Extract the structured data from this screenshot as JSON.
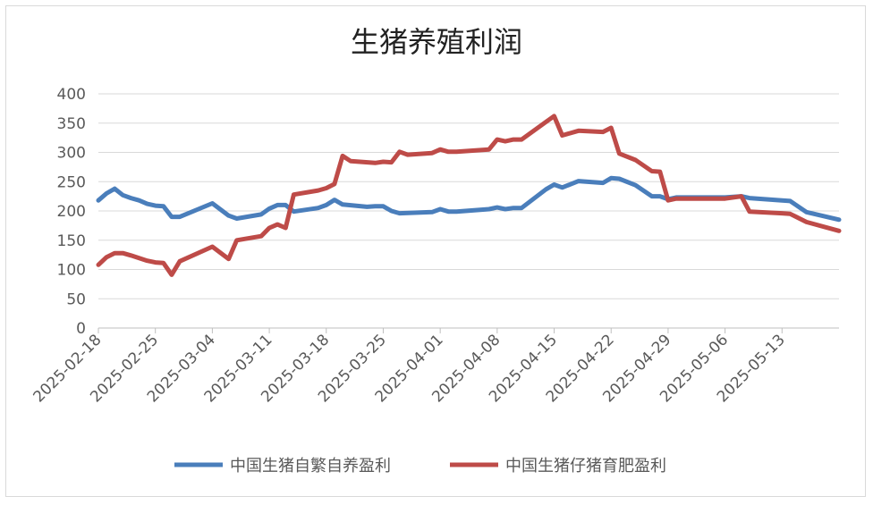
{
  "chart_data": {
    "type": "line",
    "title": "生猪养殖利润",
    "xlabel": "",
    "ylabel": "",
    "ylim": [
      0,
      400
    ],
    "yticks": [
      "0",
      "50",
      "100",
      "150",
      "200",
      "250",
      "300",
      "350",
      "400"
    ],
    "xticks": [
      "2025-02-18",
      "2025-02-25",
      "2025-03-04",
      "2025-03-11",
      "2025-03-18",
      "2025-03-25",
      "2025-04-01",
      "2025-04-08",
      "2025-04-15",
      "2025-04-22",
      "2025-04-29",
      "2025-05-06",
      "2025-05-13"
    ],
    "x_start": "2025-02-18",
    "x_end": "2025-05-20",
    "grid": true,
    "legend_position": "bottom",
    "series": [
      {
        "name": "中国生猪自繁自养盈利",
        "color": "#4a7ebb",
        "points": [
          [
            "2025-02-18",
            218
          ],
          [
            "2025-02-19",
            230
          ],
          [
            "2025-02-20",
            238
          ],
          [
            "2025-02-21",
            227
          ],
          [
            "2025-02-22",
            222
          ],
          [
            "2025-02-23",
            218
          ],
          [
            "2025-02-24",
            212
          ],
          [
            "2025-02-25",
            209
          ],
          [
            "2025-02-26",
            208
          ],
          [
            "2025-02-27",
            190
          ],
          [
            "2025-02-28",
            190
          ],
          [
            "2025-03-04",
            213
          ],
          [
            "2025-03-06",
            192
          ],
          [
            "2025-03-07",
            187
          ],
          [
            "2025-03-10",
            194
          ],
          [
            "2025-03-11",
            204
          ],
          [
            "2025-03-12",
            210
          ],
          [
            "2025-03-13",
            210
          ],
          [
            "2025-03-14",
            199
          ],
          [
            "2025-03-17",
            205
          ],
          [
            "2025-03-18",
            210
          ],
          [
            "2025-03-19",
            219
          ],
          [
            "2025-03-20",
            211
          ],
          [
            "2025-03-23",
            207
          ],
          [
            "2025-03-24",
            208
          ],
          [
            "2025-03-25",
            208
          ],
          [
            "2025-03-26",
            200
          ],
          [
            "2025-03-27",
            196
          ],
          [
            "2025-03-31",
            198
          ],
          [
            "2025-04-01",
            203
          ],
          [
            "2025-04-02",
            199
          ],
          [
            "2025-04-03",
            199
          ],
          [
            "2025-04-07",
            203
          ],
          [
            "2025-04-08",
            206
          ],
          [
            "2025-04-09",
            203
          ],
          [
            "2025-04-10",
            205
          ],
          [
            "2025-04-11",
            205
          ],
          [
            "2025-04-14",
            237
          ],
          [
            "2025-04-15",
            245
          ],
          [
            "2025-04-16",
            240
          ],
          [
            "2025-04-18",
            251
          ],
          [
            "2025-04-21",
            248
          ],
          [
            "2025-04-22",
            256
          ],
          [
            "2025-04-23",
            255
          ],
          [
            "2025-04-25",
            244
          ],
          [
            "2025-04-27",
            225
          ],
          [
            "2025-04-28",
            225
          ],
          [
            "2025-04-29",
            220
          ],
          [
            "2025-04-30",
            223
          ],
          [
            "2025-05-06",
            223
          ],
          [
            "2025-05-08",
            225
          ],
          [
            "2025-05-09",
            222
          ],
          [
            "2025-05-13",
            218
          ],
          [
            "2025-05-14",
            217
          ],
          [
            "2025-05-16",
            198
          ],
          [
            "2025-05-20",
            185
          ]
        ]
      },
      {
        "name": "中国生猪仔猪育肥盈利",
        "color": "#be4b48",
        "points": [
          [
            "2025-02-18",
            108
          ],
          [
            "2025-02-19",
            121
          ],
          [
            "2025-02-20",
            128
          ],
          [
            "2025-02-21",
            128
          ],
          [
            "2025-02-22",
            124
          ],
          [
            "2025-02-24",
            115
          ],
          [
            "2025-02-25",
            112
          ],
          [
            "2025-02-26",
            111
          ],
          [
            "2025-02-27",
            91
          ],
          [
            "2025-02-28",
            114
          ],
          [
            "2025-03-04",
            139
          ],
          [
            "2025-03-06",
            118
          ],
          [
            "2025-03-07",
            150
          ],
          [
            "2025-03-10",
            157
          ],
          [
            "2025-03-11",
            171
          ],
          [
            "2025-03-12",
            177
          ],
          [
            "2025-03-13",
            171
          ],
          [
            "2025-03-14",
            228
          ],
          [
            "2025-03-17",
            235
          ],
          [
            "2025-03-18",
            239
          ],
          [
            "2025-03-19",
            246
          ],
          [
            "2025-03-20",
            294
          ],
          [
            "2025-03-21",
            285
          ],
          [
            "2025-03-24",
            282
          ],
          [
            "2025-03-25",
            284
          ],
          [
            "2025-03-26",
            283
          ],
          [
            "2025-03-27",
            301
          ],
          [
            "2025-03-28",
            296
          ],
          [
            "2025-03-31",
            299
          ],
          [
            "2025-04-01",
            305
          ],
          [
            "2025-04-02",
            301
          ],
          [
            "2025-04-03",
            301
          ],
          [
            "2025-04-07",
            305
          ],
          [
            "2025-04-08",
            322
          ],
          [
            "2025-04-09",
            319
          ],
          [
            "2025-04-10",
            322
          ],
          [
            "2025-04-11",
            322
          ],
          [
            "2025-04-14",
            352
          ],
          [
            "2025-04-15",
            362
          ],
          [
            "2025-04-16",
            329
          ],
          [
            "2025-04-18",
            337
          ],
          [
            "2025-04-21",
            335
          ],
          [
            "2025-04-22",
            342
          ],
          [
            "2025-04-23",
            298
          ],
          [
            "2025-04-25",
            287
          ],
          [
            "2025-04-27",
            268
          ],
          [
            "2025-04-28",
            267
          ],
          [
            "2025-04-29",
            218
          ],
          [
            "2025-04-30",
            221
          ],
          [
            "2025-05-06",
            221
          ],
          [
            "2025-05-08",
            225
          ],
          [
            "2025-05-09",
            199
          ],
          [
            "2025-05-13",
            196
          ],
          [
            "2025-05-14",
            195
          ],
          [
            "2025-05-16",
            181
          ],
          [
            "2025-05-20",
            166
          ]
        ]
      }
    ]
  }
}
